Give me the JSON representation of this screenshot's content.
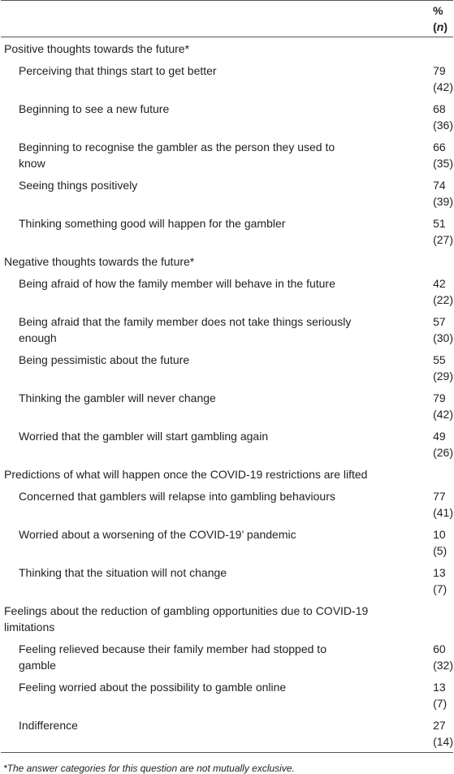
{
  "header": {
    "prefix": "% (",
    "n": "n",
    "suffix": ")"
  },
  "groups": [
    {
      "title": "Positive thoughts towards the future*",
      "rows": [
        [
          "Perceiving that things start to get better",
          "79 (42)"
        ],
        [
          "Beginning to see a new future",
          "68 (36)"
        ],
        [
          "Beginning to recognise the gambler as the person they used to know",
          "66 (35)"
        ],
        [
          "Seeing things positively",
          "74 (39)"
        ],
        [
          "Thinking something good will happen for the gambler",
          "51 (27)"
        ]
      ]
    },
    {
      "title": "Negative thoughts towards the future*",
      "rows": [
        [
          "Being afraid of how the family member will behave in the future",
          "42 (22)"
        ],
        [
          "Being afraid that the family member does not take things seriously enough",
          "57 (30)"
        ],
        [
          "Being pessimistic about the future",
          "55 (29)"
        ],
        [
          "Thinking the gambler will never change",
          "79 (42)"
        ],
        [
          "Worried that the gambler will start gambling again",
          "49 (26)"
        ]
      ]
    },
    {
      "title": "Predictions of what will happen once the COVID-19 restrictions are lifted",
      "rows": [
        [
          "Concerned that gamblers will relapse into gambling behaviours",
          "77 (41)"
        ],
        [
          "Worried about a worsening of the COVID-19’ pandemic",
          "10 (5)"
        ],
        [
          "Thinking that the situation will not change",
          "13 (7)"
        ]
      ]
    },
    {
      "title": "Feelings about the reduction of gambling opportunities due to COVID-19 limitations",
      "rows": [
        [
          "Feeling relieved because their family member had stopped to gamble",
          "60 (32)"
        ],
        [
          "Feeling worried about the possibility to gamble online",
          "13 (7)"
        ],
        [
          "Indifference",
          "27 (14)"
        ]
      ]
    }
  ],
  "footnote": "*The answer categories for this question are not mutually exclusive."
}
